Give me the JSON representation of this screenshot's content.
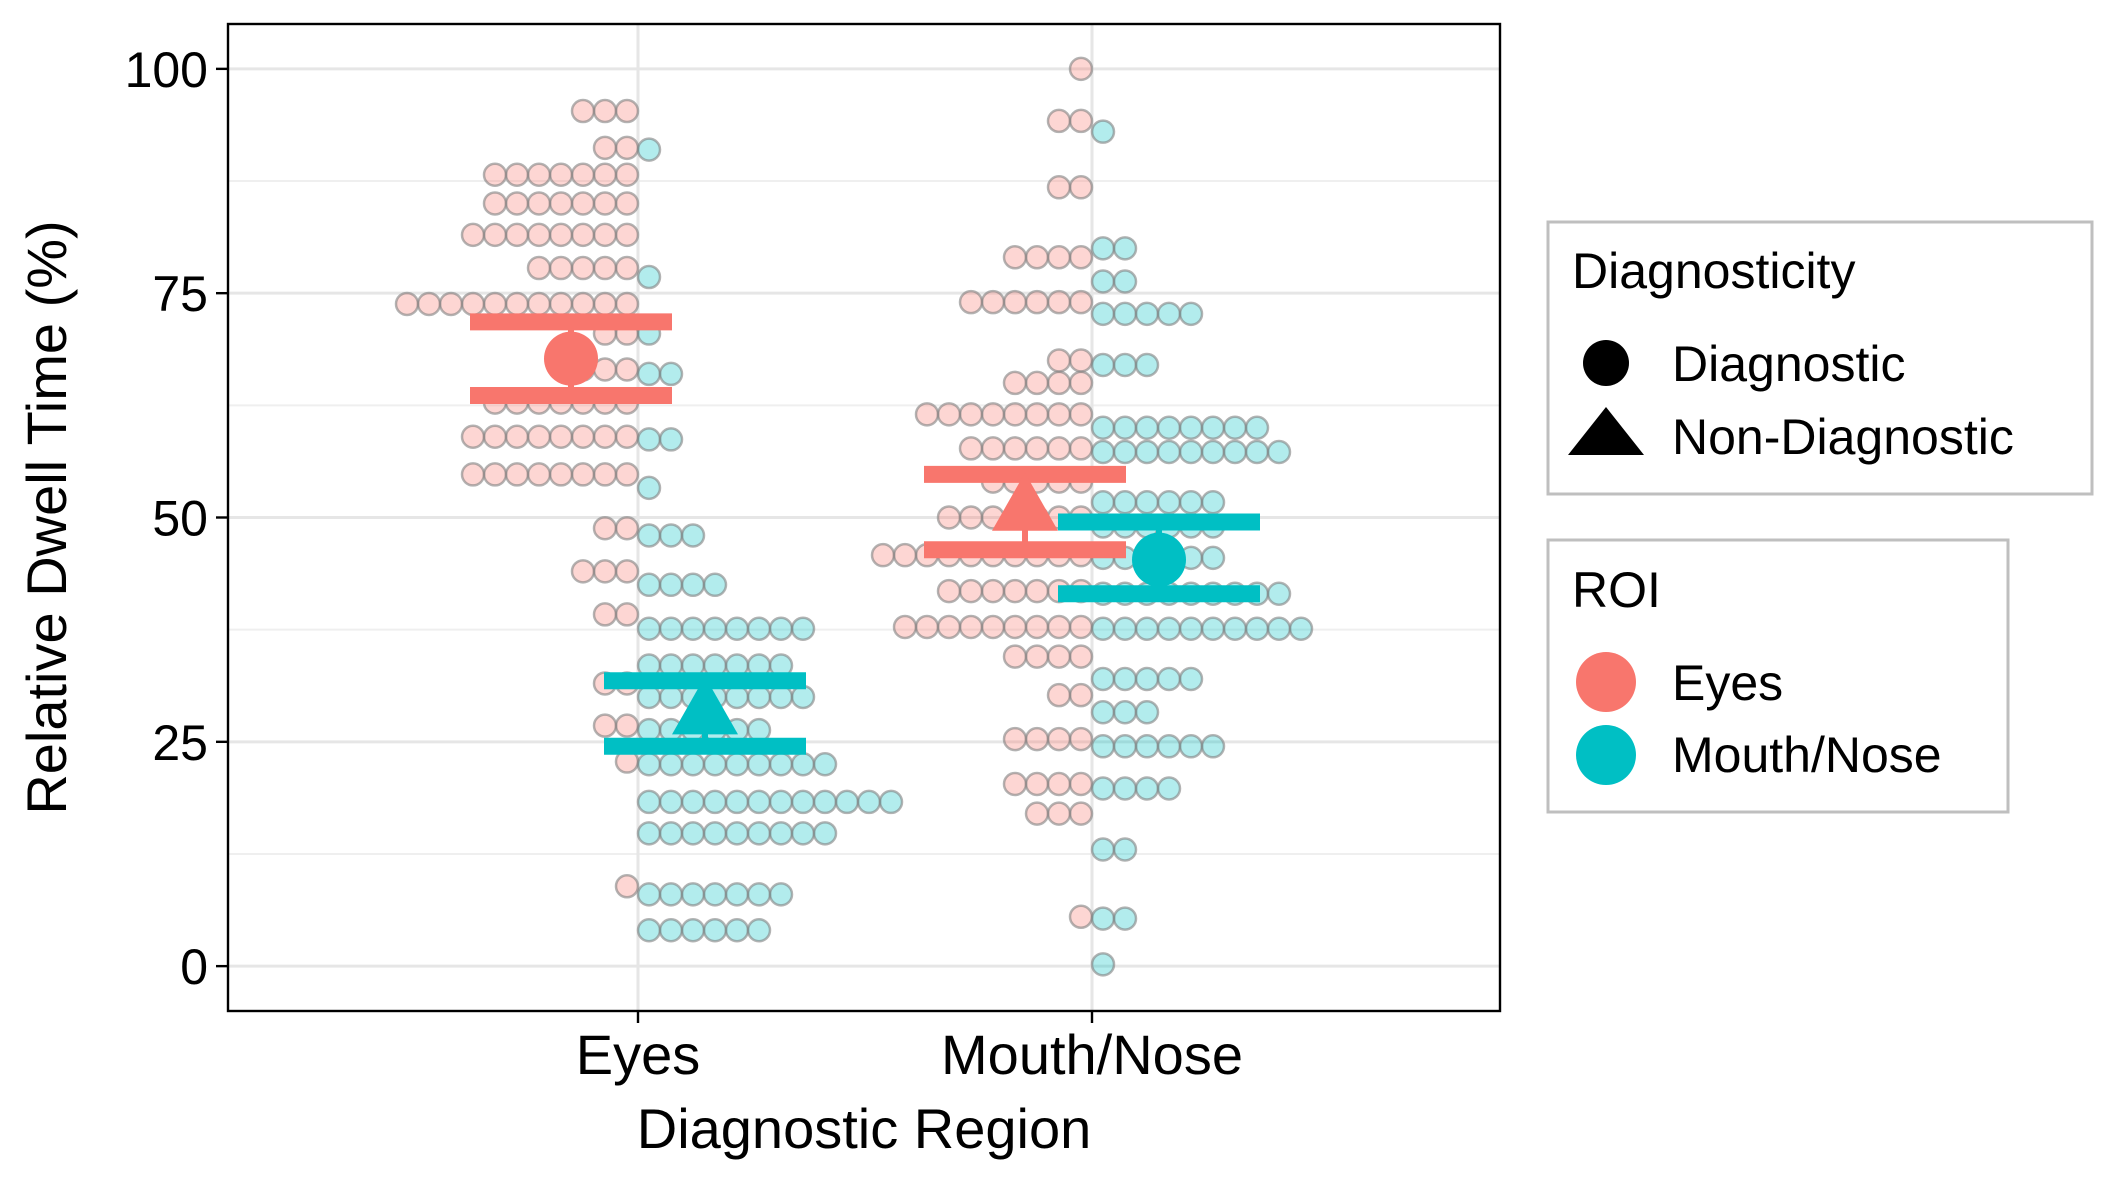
{
  "chart_data": {
    "type": "scatter",
    "title": "",
    "xlabel": "Diagnostic Region",
    "ylabel": "Relative Dwell Time (%)",
    "categories": [
      "Eyes",
      "Mouth/Nose"
    ],
    "ylim": [
      -5,
      105
    ],
    "yticks": [
      0,
      25,
      50,
      75,
      100
    ],
    "grid": true,
    "legend_placement": "right",
    "colors": {
      "Eyes": "#F8766D",
      "Mouth/Nose": "#00BFC4"
    },
    "legends": [
      {
        "title": "Diagnosticity",
        "items": [
          {
            "label": "Diagnostic",
            "shape": "circle"
          },
          {
            "label": "Non-Diagnostic",
            "shape": "triangle"
          }
        ]
      },
      {
        "title": "ROI",
        "items": [
          {
            "label": "Eyes",
            "color": "#F8766D"
          },
          {
            "label": "Mouth/Nose",
            "color": "#00BFC4"
          }
        ]
      }
    ],
    "groups": [
      {
        "region": "Eyes",
        "roi": "Eyes",
        "diagnosticity": "Diagnostic",
        "side": "left",
        "shape": "circle",
        "mean": 67.7,
        "ci": [
          63.6,
          71.8
        ],
        "dot_rows": [
          {
            "y": 95.3,
            "n": 3
          },
          {
            "y": 91.2,
            "n": 2
          },
          {
            "y": 88.2,
            "n": 7
          },
          {
            "y": 85.0,
            "n": 7
          },
          {
            "y": 81.5,
            "n": 8
          },
          {
            "y": 77.8,
            "n": 5
          },
          {
            "y": 73.8,
            "n": 11
          },
          {
            "y": 70.5,
            "n": 2
          },
          {
            "y": 66.5,
            "n": 3
          },
          {
            "y": 62.8,
            "n": 7
          },
          {
            "y": 59.0,
            "n": 8
          },
          {
            "y": 54.8,
            "n": 8
          },
          {
            "y": 48.8,
            "n": 2
          },
          {
            "y": 44.0,
            "n": 3
          },
          {
            "y": 39.2,
            "n": 2
          },
          {
            "y": 31.5,
            "n": 2
          },
          {
            "y": 26.8,
            "n": 2
          },
          {
            "y": 22.8,
            "n": 1
          },
          {
            "y": 8.9,
            "n": 1
          }
        ]
      },
      {
        "region": "Eyes",
        "roi": "Mouth/Nose",
        "diagnosticity": "Non-Diagnostic",
        "side": "right",
        "shape": "triangle",
        "mean": 28.5,
        "ci": [
          24.5,
          31.8
        ],
        "dot_rows": [
          {
            "y": 91.0,
            "n": 1
          },
          {
            "y": 76.8,
            "n": 1
          },
          {
            "y": 70.5,
            "n": 1
          },
          {
            "y": 66.0,
            "n": 2
          },
          {
            "y": 58.7,
            "n": 2
          },
          {
            "y": 53.3,
            "n": 1
          },
          {
            "y": 48.0,
            "n": 3
          },
          {
            "y": 42.5,
            "n": 4
          },
          {
            "y": 37.6,
            "n": 8
          },
          {
            "y": 33.5,
            "n": 7
          },
          {
            "y": 30.0,
            "n": 8
          },
          {
            "y": 26.3,
            "n": 6
          },
          {
            "y": 22.5,
            "n": 9
          },
          {
            "y": 18.3,
            "n": 12
          },
          {
            "y": 14.8,
            "n": 9
          },
          {
            "y": 8.0,
            "n": 7
          },
          {
            "y": 4.0,
            "n": 6
          }
        ]
      },
      {
        "region": "Mouth/Nose",
        "roi": "Eyes",
        "diagnosticity": "Non-Diagnostic",
        "side": "left",
        "shape": "triangle",
        "mean": 51.2,
        "ci": [
          46.4,
          54.8
        ],
        "dot_rows": [
          {
            "y": 100.0,
            "n": 1
          },
          {
            "y": 94.2,
            "n": 2
          },
          {
            "y": 86.8,
            "n": 2
          },
          {
            "y": 79.0,
            "n": 4
          },
          {
            "y": 74.0,
            "n": 6
          },
          {
            "y": 67.5,
            "n": 2
          },
          {
            "y": 65.0,
            "n": 4
          },
          {
            "y": 61.5,
            "n": 8
          },
          {
            "y": 57.7,
            "n": 6
          },
          {
            "y": 54.0,
            "n": 5
          },
          {
            "y": 50.0,
            "n": 7
          },
          {
            "y": 45.8,
            "n": 10
          },
          {
            "y": 41.8,
            "n": 7
          },
          {
            "y": 37.8,
            "n": 9
          },
          {
            "y": 34.5,
            "n": 4
          },
          {
            "y": 30.2,
            "n": 2
          },
          {
            "y": 25.3,
            "n": 4
          },
          {
            "y": 20.3,
            "n": 4
          },
          {
            "y": 17.0,
            "n": 3
          },
          {
            "y": 5.5,
            "n": 1
          }
        ]
      },
      {
        "region": "Mouth/Nose",
        "roi": "Mouth/Nose",
        "diagnosticity": "Diagnostic",
        "side": "right",
        "shape": "circle",
        "mean": 45.3,
        "ci": [
          41.5,
          49.5
        ],
        "dot_rows": [
          {
            "y": 93.0,
            "n": 1
          },
          {
            "y": 80.0,
            "n": 2
          },
          {
            "y": 76.3,
            "n": 2
          },
          {
            "y": 72.7,
            "n": 5
          },
          {
            "y": 67.0,
            "n": 3
          },
          {
            "y": 60.0,
            "n": 8
          },
          {
            "y": 57.3,
            "n": 9
          },
          {
            "y": 51.7,
            "n": 6
          },
          {
            "y": 49.0,
            "n": 6
          },
          {
            "y": 45.5,
            "n": 6
          },
          {
            "y": 41.5,
            "n": 9
          },
          {
            "y": 37.6,
            "n": 10
          },
          {
            "y": 32.0,
            "n": 5
          },
          {
            "y": 28.3,
            "n": 3
          },
          {
            "y": 24.5,
            "n": 6
          },
          {
            "y": 19.8,
            "n": 4
          },
          {
            "y": 13.0,
            "n": 2
          },
          {
            "y": 5.3,
            "n": 2
          },
          {
            "y": 0.2,
            "n": 1
          }
        ]
      }
    ]
  }
}
